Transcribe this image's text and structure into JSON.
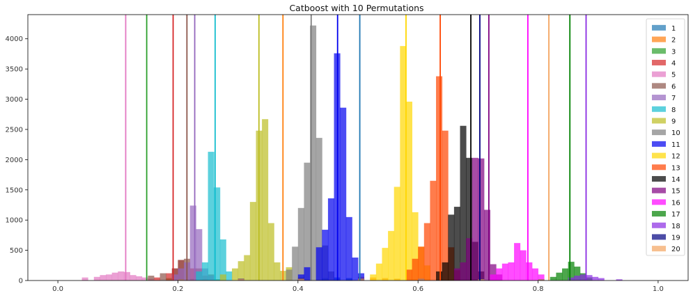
{
  "chart_data": {
    "type": "histogram",
    "title": "Catboost with 10 Permutations",
    "xlabel": "",
    "ylabel": "",
    "xlim": [
      -0.05,
      1.05
    ],
    "ylim": [
      0,
      4400
    ],
    "x_ticks": [
      "0.0",
      "0.2",
      "0.4",
      "0.6",
      "0.8",
      "1.0"
    ],
    "y_ticks": [
      "0",
      "500",
      "1000",
      "1500",
      "2000",
      "2500",
      "3000",
      "3500",
      "4000"
    ],
    "legend_position": "top-right",
    "grid": false,
    "bar_alpha": 0.7,
    "series": [
      {
        "name": "1",
        "color": "#1f77b4",
        "vline": 0.503,
        "bins": [
          [
            0.44,
            40
          ],
          [
            0.46,
            50
          ],
          [
            0.48,
            40
          ],
          [
            0.5,
            30
          ]
        ]
      },
      {
        "name": "2",
        "color": "#ff7f0e",
        "vline": 0.375,
        "bins": [
          [
            0.5,
            60
          ],
          [
            0.52,
            50
          ],
          [
            0.54,
            40
          ],
          [
            0.56,
            30
          ]
        ]
      },
      {
        "name": "3",
        "color": "#2ca02c",
        "vline": 0.148,
        "bins": [
          [
            0.18,
            40
          ],
          [
            0.2,
            35
          ],
          [
            0.22,
            30
          ],
          [
            0.24,
            25
          ],
          [
            0.26,
            20
          ]
        ]
      },
      {
        "name": "4",
        "color": "#d62728",
        "vline": 0.192,
        "bins": [
          [
            0.16,
            50
          ],
          [
            0.18,
            120
          ],
          [
            0.19,
            200
          ],
          [
            0.2,
            340
          ],
          [
            0.22,
            200
          ],
          [
            0.24,
            80
          ]
        ]
      },
      {
        "name": "5",
        "color": "#e377c2",
        "vline": 0.113,
        "bins": [
          [
            0.04,
            50
          ],
          [
            0.06,
            60
          ],
          [
            0.07,
            90
          ],
          [
            0.08,
            100
          ],
          [
            0.09,
            130
          ],
          [
            0.1,
            150
          ],
          [
            0.11,
            140
          ],
          [
            0.12,
            90
          ],
          [
            0.13,
            70
          ],
          [
            0.14,
            50
          ],
          [
            0.15,
            30
          ]
        ]
      },
      {
        "name": "6",
        "color": "#8c564b",
        "vline": 0.215,
        "bins": [
          [
            0.15,
            80
          ],
          [
            0.17,
            120
          ],
          [
            0.19,
            200
          ],
          [
            0.2,
            340
          ],
          [
            0.21,
            360
          ],
          [
            0.23,
            200
          ],
          [
            0.25,
            100
          ]
        ]
      },
      {
        "name": "7",
        "color": "#9467bd",
        "vline": 0.228,
        "bins": [
          [
            0.19,
            100
          ],
          [
            0.2,
            200
          ],
          [
            0.21,
            300
          ],
          [
            0.22,
            1240
          ],
          [
            0.23,
            850
          ],
          [
            0.24,
            200
          ],
          [
            0.25,
            80
          ]
        ]
      },
      {
        "name": "8",
        "color": "#17becf",
        "vline": 0.262,
        "bins": [
          [
            0.23,
            150
          ],
          [
            0.24,
            300
          ],
          [
            0.25,
            2130
          ],
          [
            0.26,
            1540
          ],
          [
            0.27,
            680
          ],
          [
            0.28,
            150
          ]
        ]
      },
      {
        "name": "9",
        "color": "#bcbd22",
        "vline": 0.335,
        "bins": [
          [
            0.27,
            100
          ],
          [
            0.29,
            200
          ],
          [
            0.3,
            320
          ],
          [
            0.31,
            420
          ],
          [
            0.32,
            1300
          ],
          [
            0.33,
            2480
          ],
          [
            0.34,
            2670
          ],
          [
            0.35,
            950
          ],
          [
            0.36,
            300
          ],
          [
            0.37,
            160
          ],
          [
            0.38,
            220
          ]
        ]
      },
      {
        "name": "10",
        "color": "#7f7f7f",
        "vline": 0.422,
        "bins": [
          [
            0.38,
            180
          ],
          [
            0.39,
            560
          ],
          [
            0.4,
            1200
          ],
          [
            0.41,
            1950
          ],
          [
            0.42,
            4220
          ],
          [
            0.43,
            2360
          ],
          [
            0.44,
            580
          ],
          [
            0.45,
            150
          ]
        ]
      },
      {
        "name": "11",
        "color": "#0000ee",
        "vline": 0.466,
        "bins": [
          [
            0.4,
            100
          ],
          [
            0.41,
            220
          ],
          [
            0.43,
            550
          ],
          [
            0.44,
            840
          ],
          [
            0.45,
            1360
          ],
          [
            0.46,
            3760
          ],
          [
            0.47,
            2860
          ],
          [
            0.48,
            1050
          ],
          [
            0.49,
            380
          ],
          [
            0.5,
            120
          ]
        ]
      },
      {
        "name": "12",
        "color": "#ffd700",
        "vline": 0.58,
        "bins": [
          [
            0.52,
            100
          ],
          [
            0.53,
            280
          ],
          [
            0.54,
            540
          ],
          [
            0.55,
            820
          ],
          [
            0.56,
            1550
          ],
          [
            0.57,
            3880
          ],
          [
            0.58,
            2960
          ],
          [
            0.59,
            1130
          ],
          [
            0.6,
            560
          ],
          [
            0.61,
            250
          ]
        ]
      },
      {
        "name": "13",
        "color": "#ff4500",
        "vline": 0.637,
        "bins": [
          [
            0.58,
            180
          ],
          [
            0.59,
            360
          ],
          [
            0.6,
            560
          ],
          [
            0.61,
            950
          ],
          [
            0.62,
            1650
          ],
          [
            0.63,
            3380
          ],
          [
            0.64,
            2480
          ],
          [
            0.65,
            550
          ],
          [
            0.66,
            170
          ]
        ]
      },
      {
        "name": "14",
        "color": "#000000",
        "vline": 0.688,
        "bins": [
          [
            0.63,
            150
          ],
          [
            0.64,
            300
          ],
          [
            0.65,
            1090
          ],
          [
            0.66,
            1220
          ],
          [
            0.67,
            2560
          ],
          [
            0.68,
            2030
          ],
          [
            0.69,
            640
          ],
          [
            0.7,
            150
          ]
        ]
      },
      {
        "name": "15",
        "color": "#800080",
        "vline": 0.718,
        "bins": [
          [
            0.66,
            200
          ],
          [
            0.67,
            300
          ],
          [
            0.68,
            700
          ],
          [
            0.69,
            2030
          ],
          [
            0.7,
            2020
          ],
          [
            0.71,
            1170
          ],
          [
            0.72,
            270
          ],
          [
            0.73,
            100
          ]
        ]
      },
      {
        "name": "16",
        "color": "#ff00ff",
        "vline": 0.783,
        "bins": [
          [
            0.72,
            100
          ],
          [
            0.73,
            200
          ],
          [
            0.74,
            280
          ],
          [
            0.75,
            300
          ],
          [
            0.76,
            620
          ],
          [
            0.77,
            500
          ],
          [
            0.78,
            300
          ],
          [
            0.79,
            200
          ],
          [
            0.8,
            100
          ]
        ]
      },
      {
        "name": "17",
        "color": "#008000",
        "vline": 0.853,
        "bins": [
          [
            0.82,
            60
          ],
          [
            0.83,
            130
          ],
          [
            0.84,
            200
          ],
          [
            0.85,
            310
          ],
          [
            0.86,
            230
          ],
          [
            0.87,
            120
          ],
          [
            0.88,
            50
          ]
        ]
      },
      {
        "name": "18",
        "color": "#8a2be2",
        "vline": 0.88,
        "bins": [
          [
            0.85,
            50
          ],
          [
            0.86,
            80
          ],
          [
            0.87,
            100
          ],
          [
            0.88,
            90
          ],
          [
            0.89,
            60
          ],
          [
            0.9,
            40
          ],
          [
            0.93,
            20
          ]
        ]
      },
      {
        "name": "19",
        "color": "#000080",
        "vline": 0.703,
        "bins": [
          [
            0.2,
            20
          ],
          [
            0.3,
            30
          ],
          [
            0.4,
            40
          ],
          [
            0.5,
            30
          ],
          [
            0.6,
            30
          ],
          [
            0.7,
            30
          ],
          [
            0.8,
            20
          ]
        ]
      },
      {
        "name": "20",
        "color": "#f4a460",
        "vline": 0.818,
        "bins": [
          [
            0.2,
            20
          ],
          [
            0.3,
            25
          ],
          [
            0.4,
            30
          ],
          [
            0.5,
            30
          ],
          [
            0.6,
            30
          ],
          [
            0.7,
            25
          ],
          [
            0.8,
            20
          ]
        ]
      }
    ]
  }
}
